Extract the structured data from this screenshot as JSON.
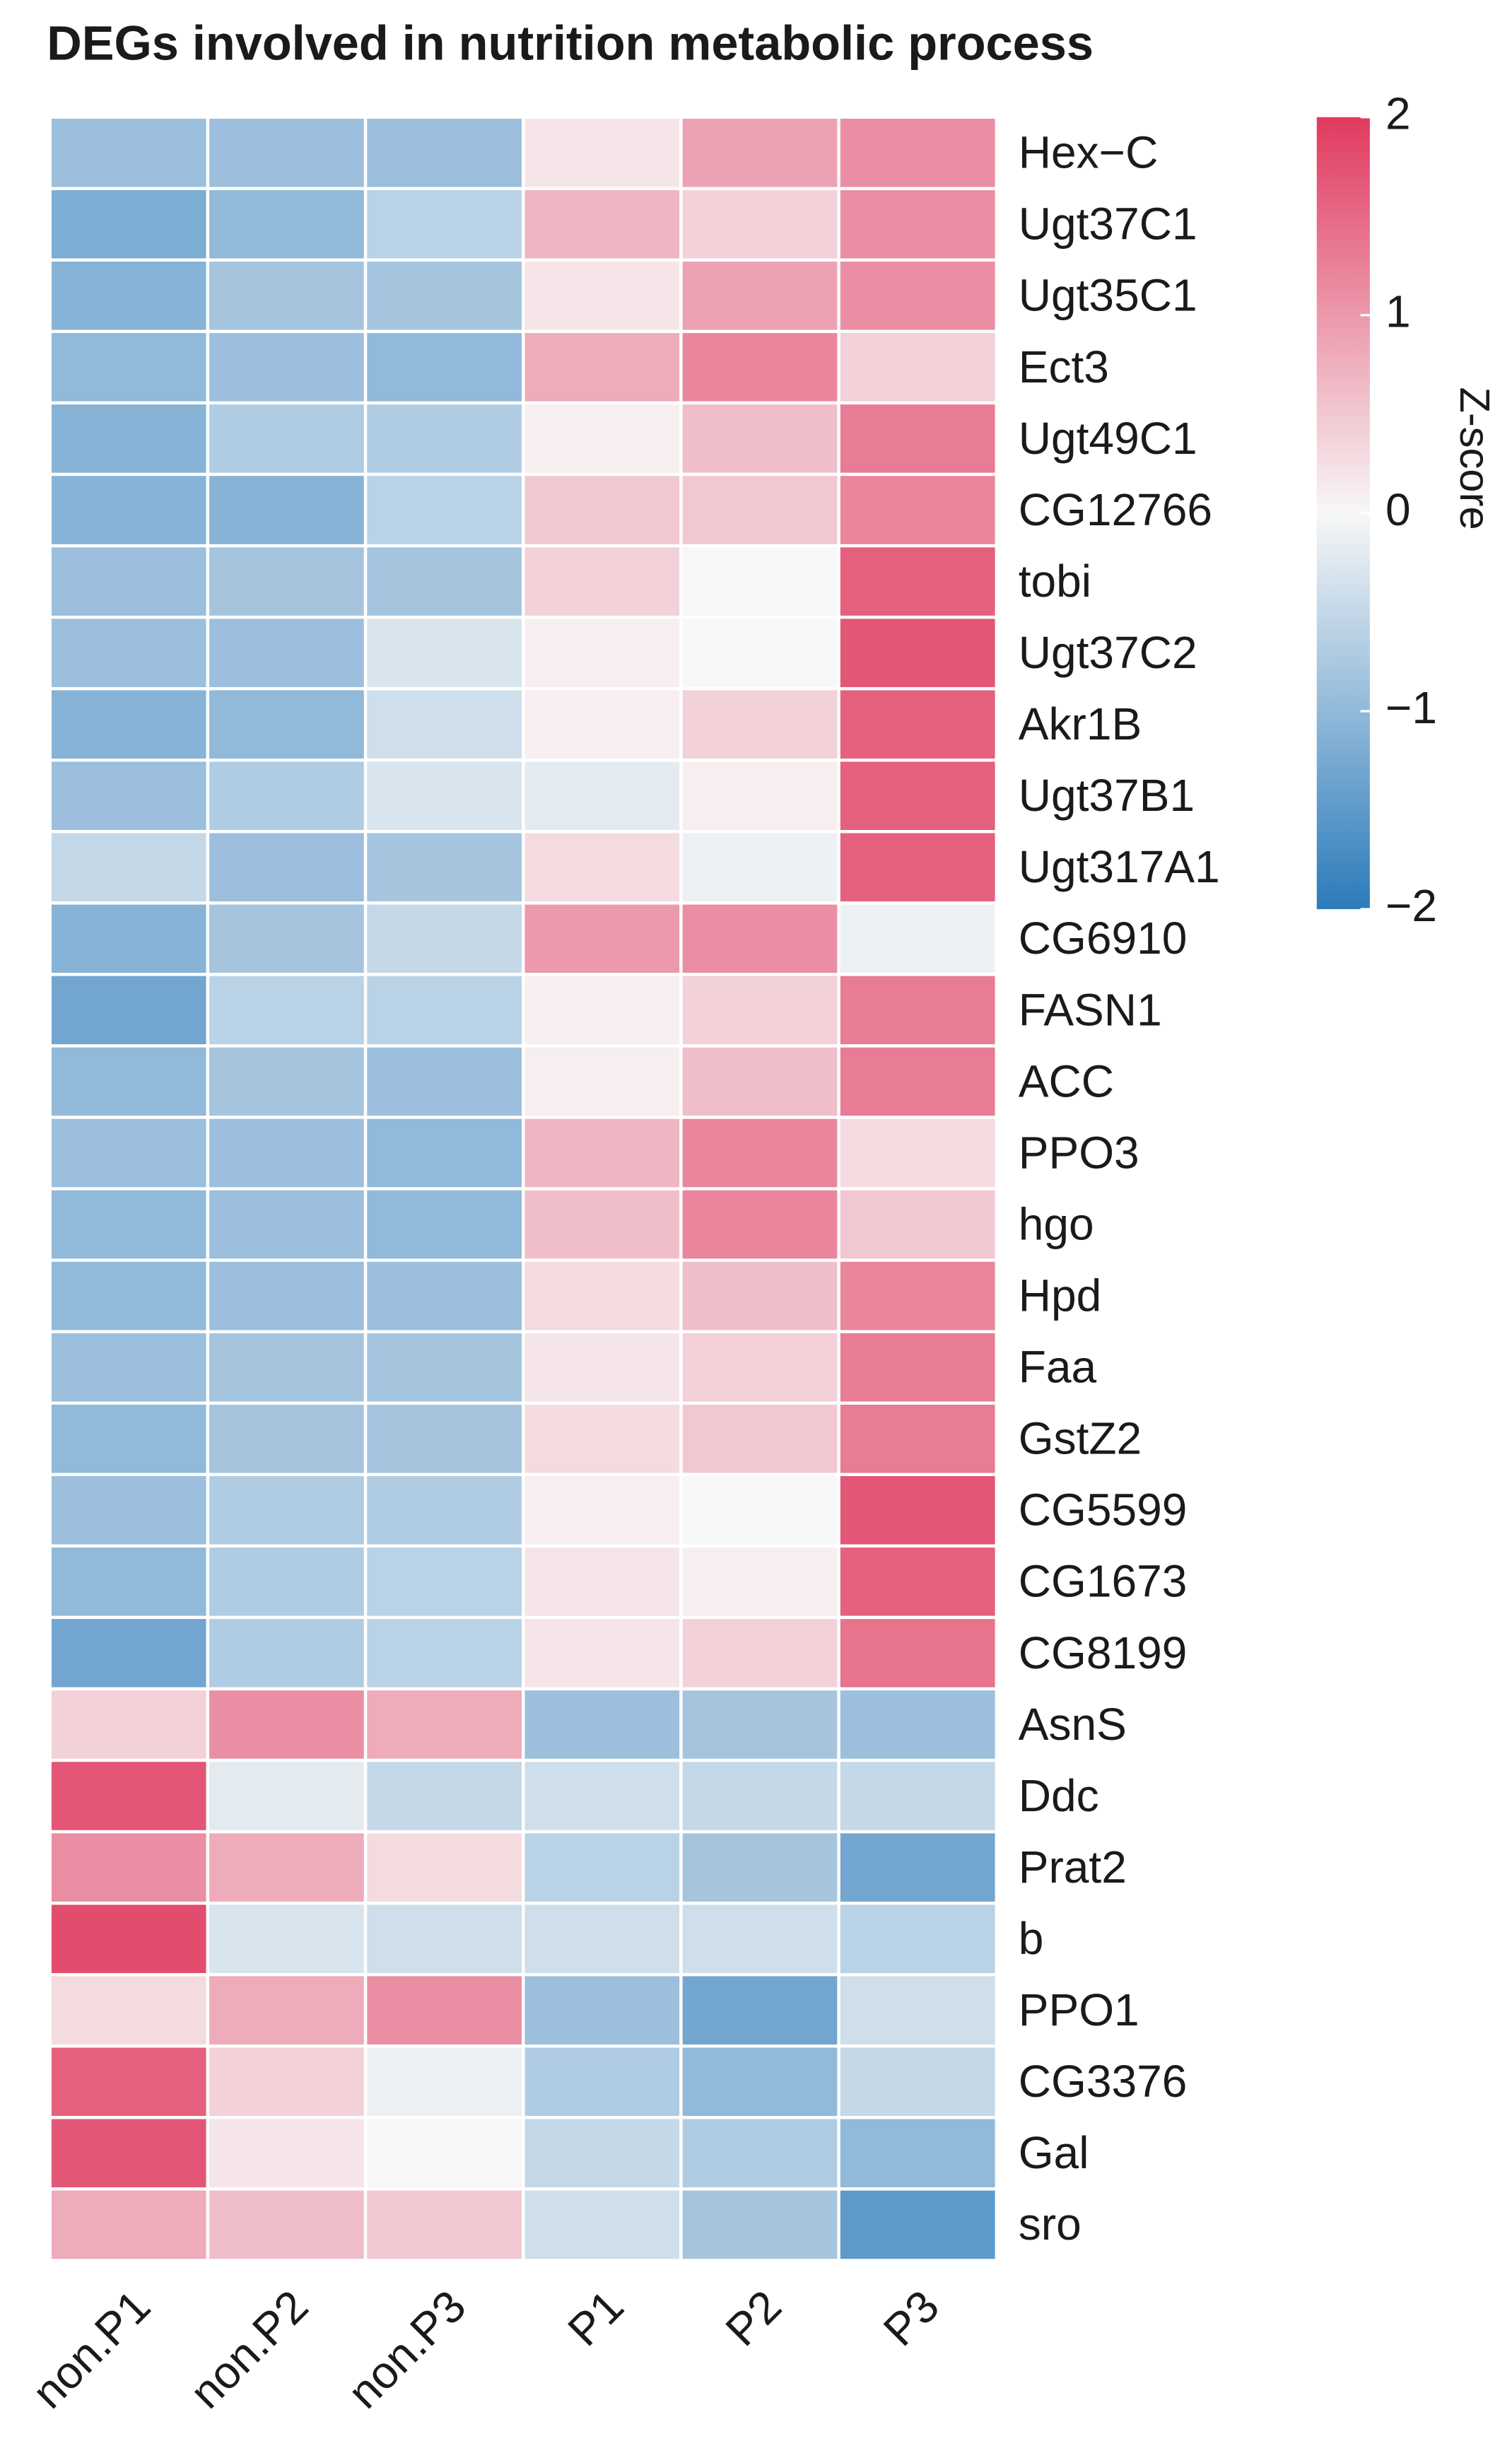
{
  "chart_data": {
    "type": "heatmap",
    "title": "DEGs involved in nutrition metabolic process",
    "columns": [
      "non.P1",
      "non.P2",
      "non.P3",
      "P1",
      "P2",
      "P3"
    ],
    "rows": [
      "Hex−C",
      "Ugt37C1",
      "Ugt35C1",
      "Ect3",
      "Ugt49C1",
      "CG12766",
      "tobi",
      "Ugt37C2",
      "Akr1B",
      "Ugt37B1",
      "Ugt317A1",
      "CG6910",
      "FASN1",
      "ACC",
      "PPO3",
      "hgo",
      "Hpd",
      "Faa",
      "GstZ2",
      "CG5599",
      "CG1673",
      "CG8199",
      "AsnS",
      "Ddc",
      "Prat2",
      "b",
      "PPO1",
      "CG3376",
      "Gal",
      "sro"
    ],
    "values": [
      [
        -0.9,
        -0.9,
        -0.9,
        0.2,
        0.9,
        1.1
      ],
      [
        -1.2,
        -1.0,
        -0.6,
        0.7,
        0.4,
        1.1
      ],
      [
        -1.1,
        -0.8,
        -0.8,
        0.2,
        0.9,
        1.1
      ],
      [
        -1.0,
        -0.9,
        -1.0,
        0.8,
        1.2,
        0.4
      ],
      [
        -1.1,
        -0.7,
        -0.7,
        0.1,
        0.6,
        1.3
      ],
      [
        -1.1,
        -1.1,
        -0.6,
        0.5,
        0.5,
        1.2
      ],
      [
        -0.9,
        -0.8,
        -0.8,
        0.4,
        0.0,
        1.6
      ],
      [
        -0.9,
        -0.9,
        -0.3,
        0.1,
        0.0,
        1.7
      ],
      [
        -1.1,
        -1.0,
        -0.4,
        0.1,
        0.4,
        1.6
      ],
      [
        -0.9,
        -0.7,
        -0.3,
        -0.2,
        0.1,
        1.6
      ],
      [
        -0.5,
        -0.9,
        -0.8,
        0.3,
        -0.1,
        1.6
      ],
      [
        -1.1,
        -0.8,
        -0.5,
        1.0,
        1.1,
        -0.1
      ],
      [
        -1.3,
        -0.6,
        -0.6,
        0.1,
        0.4,
        1.3
      ],
      [
        -1.0,
        -0.8,
        -0.9,
        0.1,
        0.6,
        1.3
      ],
      [
        -0.9,
        -0.9,
        -1.0,
        0.7,
        1.2,
        0.3
      ],
      [
        -1.0,
        -0.9,
        -1.0,
        0.6,
        1.2,
        0.5
      ],
      [
        -1.0,
        -0.9,
        -0.9,
        0.3,
        0.6,
        1.2
      ],
      [
        -0.9,
        -0.8,
        -0.8,
        0.2,
        0.4,
        1.3
      ],
      [
        -1.0,
        -0.8,
        -0.8,
        0.3,
        0.5,
        1.3
      ],
      [
        -0.9,
        -0.7,
        -0.7,
        0.1,
        0.0,
        1.7
      ],
      [
        -1.0,
        -0.7,
        -0.6,
        0.2,
        0.1,
        1.6
      ],
      [
        -1.3,
        -0.7,
        -0.6,
        0.2,
        0.4,
        1.4
      ],
      [
        0.4,
        1.1,
        0.8,
        -0.9,
        -0.8,
        -0.9
      ],
      [
        1.7,
        -0.2,
        -0.5,
        -0.4,
        -0.5,
        -0.5
      ],
      [
        1.1,
        0.8,
        0.3,
        -0.6,
        -0.8,
        -1.3
      ],
      [
        1.8,
        -0.3,
        -0.4,
        -0.4,
        -0.4,
        -0.6
      ],
      [
        0.3,
        0.8,
        1.1,
        -0.9,
        -1.3,
        -0.4
      ],
      [
        1.6,
        0.4,
        -0.1,
        -0.7,
        -1.0,
        -0.5
      ],
      [
        1.7,
        0.2,
        0.0,
        -0.5,
        -0.7,
        -1.0
      ],
      [
        0.8,
        0.6,
        0.5,
        -0.4,
        -0.8,
        -1.5
      ]
    ],
    "colorscale": [
      "#2b7bbb",
      "#f7f7f7",
      "#e03a5f"
    ],
    "zlim": [
      -2,
      2
    ],
    "zticks": [
      2,
      1,
      0,
      {
        "value": -1,
        "label": "−1"
      },
      {
        "value": -2,
        "label": "−2"
      }
    ],
    "colorbar_label": "Z-score"
  }
}
